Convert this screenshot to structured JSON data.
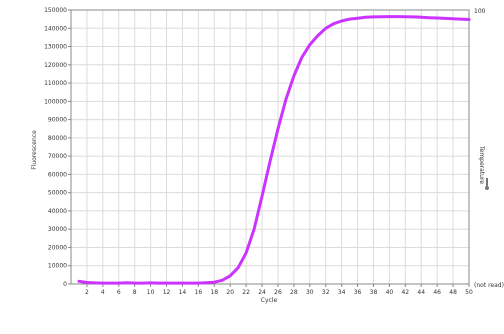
{
  "chart_data": {
    "type": "line",
    "title": "",
    "xlabel": "Cycle",
    "ylabel": "Fluorescence",
    "y2label": "Temperature",
    "y2_icon": "thermometer-icon",
    "xlim": [
      0,
      50
    ],
    "ylim": [
      0,
      150000
    ],
    "y2_tick_labels": [
      "100",
      "(not read)"
    ],
    "x_ticks": [
      2,
      4,
      6,
      8,
      10,
      12,
      14,
      16,
      18,
      20,
      22,
      24,
      26,
      28,
      30,
      32,
      34,
      36,
      38,
      40,
      42,
      44,
      46,
      48,
      50
    ],
    "y_ticks": [
      0,
      10000,
      20000,
      30000,
      40000,
      50000,
      60000,
      70000,
      80000,
      90000,
      100000,
      110000,
      120000,
      130000,
      140000,
      150000
    ],
    "grid": true,
    "colors": {
      "series": "#cc33ff",
      "grid": "#dcdcdc",
      "axis": "#888888",
      "plot_background": "#ffffff"
    },
    "series": [
      {
        "name": "",
        "x": [
          1,
          2,
          3,
          4,
          5,
          6,
          7,
          8,
          9,
          10,
          11,
          12,
          13,
          14,
          15,
          16,
          17,
          18,
          19,
          20,
          21,
          22,
          23,
          24,
          25,
          26,
          27,
          28,
          29,
          30,
          31,
          32,
          33,
          34,
          35,
          36,
          37,
          38,
          39,
          40,
          41,
          42,
          43,
          44,
          45,
          46,
          47,
          48,
          49,
          50
        ],
        "y": [
          1500,
          800,
          600,
          500,
          500,
          500,
          700,
          500,
          500,
          600,
          500,
          500,
          500,
          500,
          500,
          500,
          700,
          1000,
          2000,
          4500,
          9000,
          17000,
          30000,
          48000,
          67000,
          85000,
          101000,
          114000,
          124000,
          131000,
          136000,
          140000,
          142500,
          144000,
          145000,
          145500,
          146000,
          146200,
          146300,
          146400,
          146400,
          146300,
          146200,
          146000,
          145800,
          145600,
          145400,
          145200,
          145000,
          144800
        ]
      }
    ]
  }
}
